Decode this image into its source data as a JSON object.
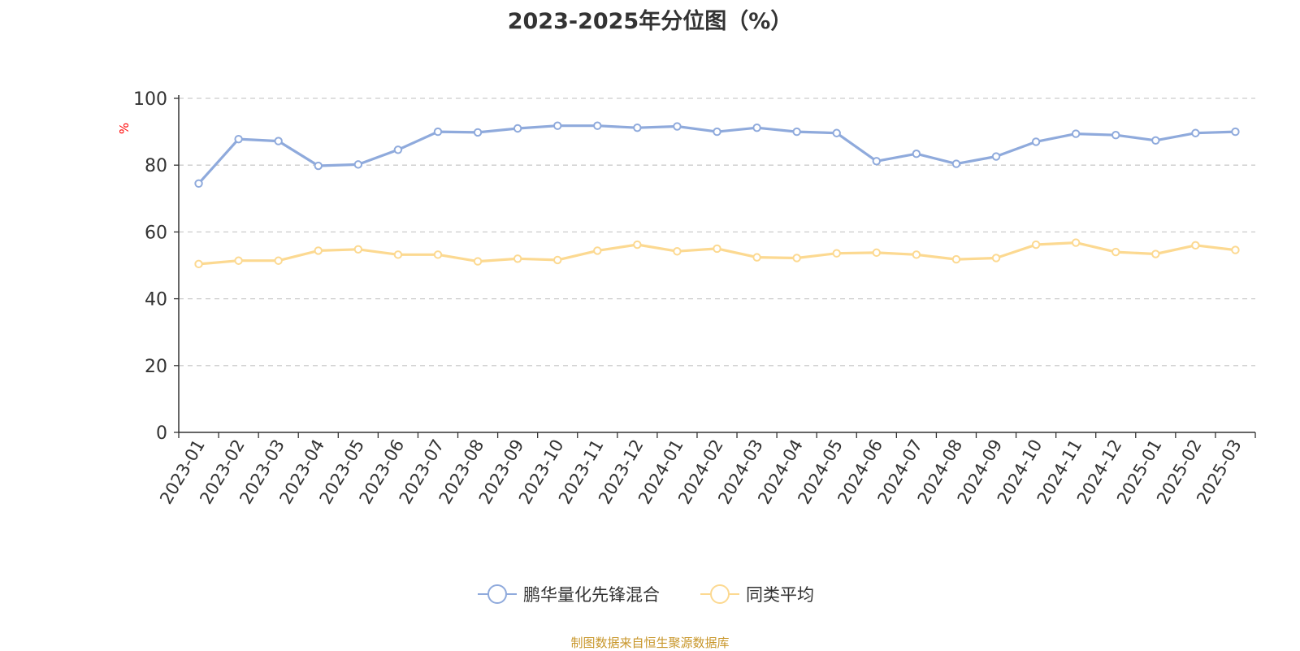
{
  "title": "2023-2025年分位图（%）",
  "footer": "制图数据来自恒生聚源数据库",
  "colors": {
    "series1": "#8faadc",
    "series2": "#fcd991",
    "axis": "#333333",
    "grid": "#cccccc",
    "ylabel": "#ff0000"
  },
  "chart_data": {
    "type": "line",
    "title": "2023-2025年分位图（%）",
    "xlabel": "",
    "ylabel": "%",
    "ylim": [
      0,
      100
    ],
    "yticks": [
      "0",
      "20",
      "40",
      "60",
      "80",
      "100"
    ],
    "grid": true,
    "legend_position": "bottom",
    "categories": [
      "2023-01",
      "2023-02",
      "2023-03",
      "2023-04",
      "2023-05",
      "2023-06",
      "2023-07",
      "2023-08",
      "2023-09",
      "2023-10",
      "2023-11",
      "2023-12",
      "2024-01",
      "2024-02",
      "2024-03",
      "2024-04",
      "2024-05",
      "2024-06",
      "2024-07",
      "2024-08",
      "2024-09",
      "2024-10",
      "2024-11",
      "2024-12",
      "2025-01",
      "2025-02",
      "2025-03"
    ],
    "series": [
      {
        "name": "鹏华量化先锋混合",
        "color": "#8faadc",
        "values": [
          74.5,
          87.8,
          87.2,
          79.8,
          80.2,
          84.6,
          90.0,
          89.8,
          91.0,
          91.8,
          91.8,
          91.2,
          91.6,
          90.0,
          91.2,
          90.0,
          89.6,
          81.2,
          83.4,
          80.4,
          82.6,
          87.0,
          89.4,
          89.0,
          87.4,
          89.6,
          90.0
        ]
      },
      {
        "name": "同类平均",
        "color": "#fcd991",
        "values": [
          50.4,
          51.4,
          51.4,
          54.4,
          54.8,
          53.2,
          53.2,
          51.2,
          52.0,
          51.6,
          54.4,
          56.2,
          54.2,
          55.0,
          52.4,
          52.2,
          53.6,
          53.8,
          53.2,
          51.8,
          52.2,
          56.2,
          56.8,
          54.0,
          53.4,
          56.0,
          54.6
        ]
      }
    ]
  }
}
